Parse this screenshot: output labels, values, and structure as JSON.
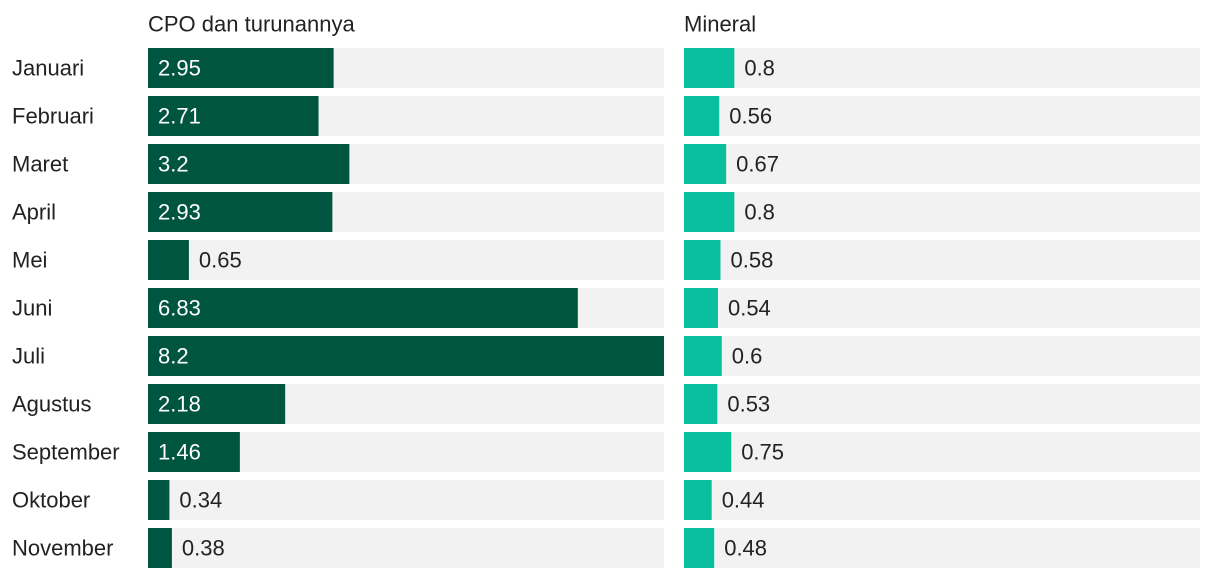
{
  "chart_data": {
    "type": "bar",
    "orientation": "horizontal",
    "layout": "small-multiples",
    "categories": [
      "Januari",
      "Februari",
      "Maret",
      "April",
      "Mei",
      "Juni",
      "Juli",
      "Agustus",
      "September",
      "Oktober",
      "November"
    ],
    "series": [
      {
        "name": "CPO dan turunannya",
        "color": "#005540",
        "values": [
          2.95,
          2.71,
          3.2,
          2.93,
          0.65,
          6.83,
          8.2,
          2.18,
          1.46,
          0.34,
          0.38
        ],
        "xlim": [
          0,
          8.2
        ]
      },
      {
        "name": "Mineral",
        "color": "#0abf9e",
        "values": [
          0.8,
          0.56,
          0.67,
          0.8,
          0.58,
          0.54,
          0.6,
          0.53,
          0.75,
          0.44,
          0.48
        ],
        "xlim": [
          0,
          8.2
        ]
      }
    ],
    "track_color": "#f2f2f2",
    "grid": false,
    "legend": "none"
  }
}
